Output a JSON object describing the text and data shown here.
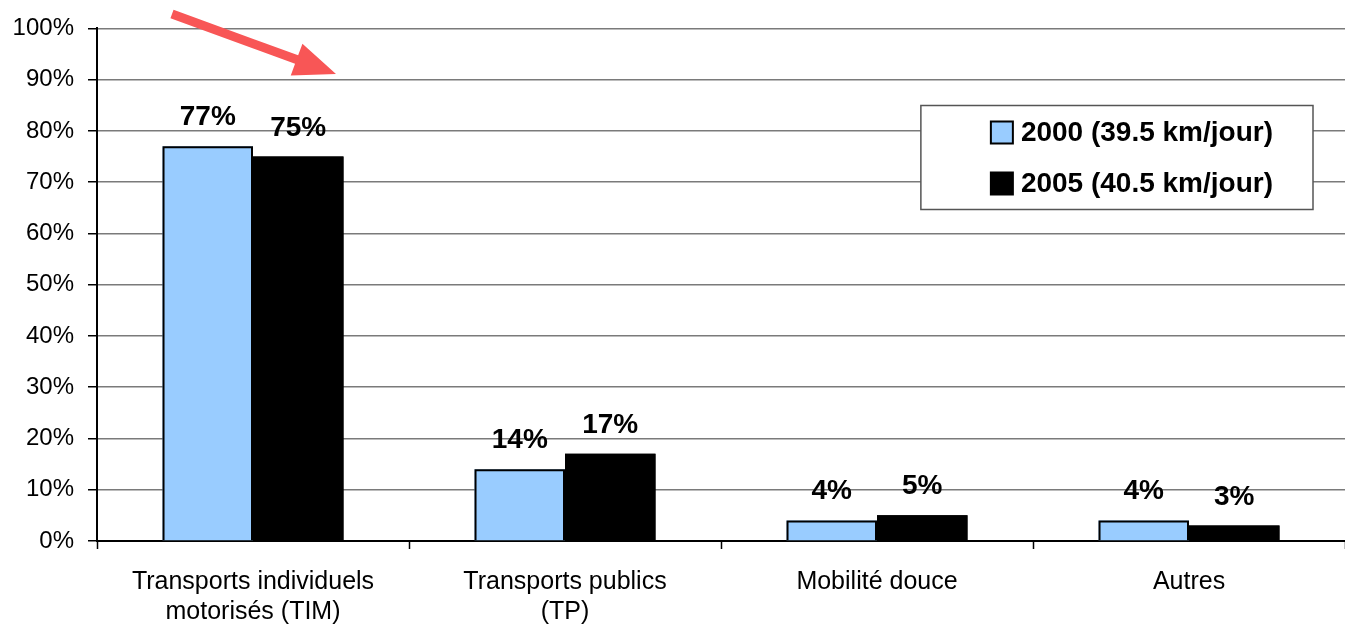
{
  "chart_data": {
    "type": "bar",
    "categories": [
      "Transports individuels motorisés (TIM)",
      "Transports publics (TP)",
      "Mobilité douce",
      "Autres"
    ],
    "series": [
      {
        "name": "2000 (39.5 km/jour)",
        "color": "#99ccff",
        "values": [
          77,
          14,
          4,
          4
        ],
        "value_labels": [
          "77%",
          "14%",
          "4%",
          "4%"
        ]
      },
      {
        "name": "2005 (40.5 km/jour)",
        "color": "#000000",
        "values": [
          75,
          17,
          5,
          3
        ],
        "value_labels": [
          "75%",
          "17%",
          "5%",
          "3%"
        ]
      }
    ],
    "ylim": [
      0,
      100
    ],
    "yticks": [
      {
        "value": 0,
        "label": "0%"
      },
      {
        "value": 10,
        "label": "10%"
      },
      {
        "value": 20,
        "label": "20%"
      },
      {
        "value": 30,
        "label": "30%"
      },
      {
        "value": 40,
        "label": "40%"
      },
      {
        "value": 50,
        "label": "50%"
      },
      {
        "value": 60,
        "label": "60%"
      },
      {
        "value": 70,
        "label": "70%"
      },
      {
        "value": 80,
        "label": "80%"
      },
      {
        "value": 90,
        "label": "90%"
      },
      {
        "value": 100,
        "label": "100%"
      }
    ],
    "grid": "y",
    "legend": "top right"
  }
}
